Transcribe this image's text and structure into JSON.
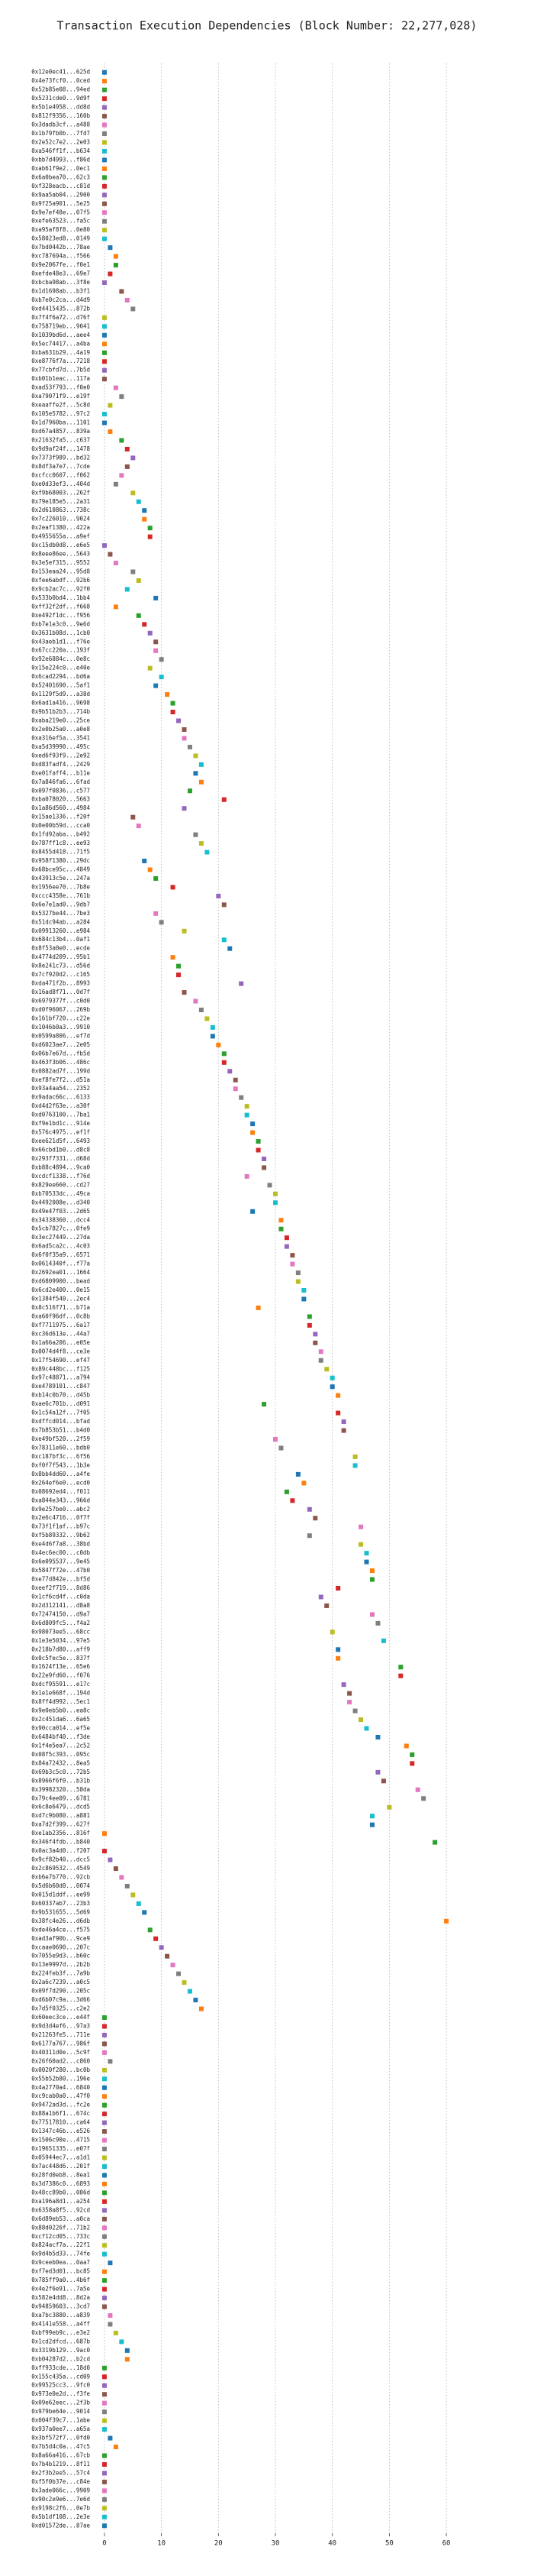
{
  "chart_data": {
    "type": "dot",
    "title": "Transaction Execution Dependencies (Block Number: 22,277,028)",
    "categories": [
      "0x12e0ec41...625d",
      "0x4e73fcf0...0ced",
      "0x52b85e08...94ed",
      "0x5231cde0...9d9f",
      "0x5b1e4958...dd8d",
      "0x812f9356...160b",
      "0x3dadb3cf...a488",
      "0x1b79fb0b...7fd7",
      "0x2e52c7e2...2e03",
      "0xa546ff1f...b634",
      "0xbb7d4993...f86d",
      "0xab61f9e2...0ec1",
      "0x6a0bea70...62c3",
      "0xf328eacb...c81d",
      "0x9aa5ab04...2900",
      "0x9f25a901...5e25",
      "0x9e7ef48e...07f5",
      "0xefe63523...fa5c",
      "0xa95af8f8...0e80",
      "0x58023ed8...0149",
      "0x7bd0442b...78ae",
      "0xc787694a...f566",
      "0x9e2067fe...f0e1",
      "0xefde48e3...69e7",
      "0xbcba98ab...3f8e",
      "0x1d1698ab...b3f1",
      "0xb7e0c2ca...d4d9",
      "0xd4415435...872b",
      "0x7f4f6a72...d76f",
      "0x758719eb...9041",
      "0x1039bd6d...aee4",
      "0x5ec74417...a4ba",
      "0xba631b29...4a19",
      "0xe8776f7a...7218",
      "0x77cbfd7d...7b5d",
      "0xb01b1eac...117a",
      "0xad53f793...f0e0",
      "0xa79071f9...e19f",
      "0xeaaffe2f...5c8d",
      "0x105e5782...97c2",
      "0x1d7960ba...1101",
      "0xd67a4857...839a",
      "0x21632fa5...c637",
      "0x9d9af24f...1478",
      "0x7373f989...bd32",
      "0x8df3a7e7...7cde",
      "0xcfcc0607...f062",
      "0xe0d33ef3...404d",
      "0xf9b68003...262f",
      "0x79e185e5...2a31",
      "0x2d610863...738c",
      "0x7c226010...9024",
      "0x2eaf1380...422a",
      "0x4955655a...a9ef",
      "0xc15db0d8...e6e5",
      "0x8eee86ee...5643",
      "0x3e5ef315...9552",
      "0x153eaa24...95d8",
      "0xfee6abdf...92b6",
      "0x9cb2ac7c...92f0",
      "0x533b0bd4...1bb4",
      "0xff32f2df...f668",
      "0xe492f1dc...f956",
      "0xb7e1e3c0...9e6d",
      "0x3631b08d...1cb0",
      "0x43aeb1d1...f76e",
      "0x67cc220a...193f",
      "0x92e6884c...0e8c",
      "0x15e224c0...e40e",
      "0x6cad2294...bd6a",
      "0x52401690...5af1",
      "0x1129f5d9...a38d",
      "0x6ad1a416...9698",
      "0x9b51b2b3...714b",
      "0xaba219e0...25ce",
      "0x2e0b25a0...a0e8",
      "0xa316ef5a...3541",
      "0xa5d39990...495c",
      "0xed6f93f9...2e92",
      "0xd83fadf4...2429",
      "0xe01faff4...b11e",
      "0x7a846fa6...6fad",
      "0x097f0836...c577",
      "0xba078020...5663",
      "0x1a86d560...4984",
      "0x15ae1336...f20f",
      "0x0e00b59d...cca0",
      "0x1fd92aba...b492",
      "0x787ff1c8...ee93",
      "0x8455d418...71f5",
      "0x958f1380...29dc",
      "0x68bce95c...4849",
      "0x43913c5e...247a",
      "0x1956ee70...7b8e",
      "0xccc4358e...761b",
      "0x6e7e1ad0...9db7",
      "0x5327be44...7be3",
      "0x51dc94ab...a284",
      "0x09913260...e984",
      "0x684c13b4...0af1",
      "0x8f53a0e0...ecde",
      "0x4774d209...95b1",
      "0x8e241c73...d56d",
      "0x7cf920d2...c165",
      "0xda471f2b...8993",
      "0x16ad8f71...0d7f",
      "0x6979377f...c0d0",
      "0xd0f96067...269b",
      "0x161bf720...c22e",
      "0x1046b0a3...9910",
      "0x0599a806...ef7d",
      "0xd6023ae7...2e05",
      "0x06b7e67d...fb5d",
      "0x463f3b06...486c",
      "0x0882ad7f...199d",
      "0xef8fe7f2...d51a",
      "0x93a4aa54...2352",
      "0x9adac66c...6133",
      "0xd4d2f63e...a30f",
      "0xd0763100...7ba1",
      "0xf9e1bd1c...914e",
      "0x576c4975...ef1f",
      "0xee621d5f...6493",
      "0x66cbd1b0...d8c8",
      "0x293f7331...d68d",
      "0xb88c4894...9ca0",
      "0xcdcf1338...f76d",
      "0x829ee660...cd27",
      "0xb70533dc...49ca",
      "0x4492008e...d340",
      "0x49e47f03...2d65",
      "0x34338360...dcc4",
      "0x5cb7827c...0fe9",
      "0x3ec27449...27da",
      "0x6ad5ca2c...4c03",
      "0x6f0f35a9...6571",
      "0x0614340f...f77a",
      "0x2692ea01...1664",
      "0xd6809900...bead",
      "0x6cd2e400...0e15",
      "0x1384f540...2ec4",
      "0x8c516f71...b71a",
      "0xa60f96df...0c8b",
      "0xf7711975...6a17",
      "0xc36d613e...44a7",
      "0x1a66a206...e05e",
      "0x0074d4f8...ce3e",
      "0x17f54690...ef47",
      "0x89c448bc...f125",
      "0x97c48871...a794",
      "0xe4789101...c847",
      "0xb14c0b70...d45b",
      "0xae6c701b...d091",
      "0x1c54a12f...7f05",
      "0xdffcd014...bfad",
      "0x7b853b51...b4d0",
      "0xe49bf520...2f59",
      "0x78311e60...bdb0",
      "0xc187bf3c...6f56",
      "0xf0f7f543...1b3e",
      "0x8bb4dd60...a4fe",
      "0x264ef6e0...ecd0",
      "0x08692ed4...f011",
      "0xa844e343...966d",
      "0x9e257be0...abc2",
      "0x2e6c4716...0f7f",
      "0x73f1f1af...b97c",
      "0xf5b89332...9b62",
      "0xe4d6f7a8...38bd",
      "0x4ec6ec00...c0db",
      "0x6e095537...9e45",
      "0x5847f72e...47b0",
      "0xe77d842e...bf5d",
      "0xeef2f719...8d86",
      "0x1cf6cd4f...c0da",
      "0x2d312141...d8a8",
      "0x72474150...d9a7",
      "0x6d809fc5...f4a2",
      "0x98073ee5...68cc",
      "0x1e3e5034...97e5",
      "0x218b7d80...aff9",
      "0x0c5fec5e...837f",
      "0x1624f13e...65e6",
      "0x22e9fd60...f076",
      "0xdcf95591...e17c",
      "0x1e1e668f...194d",
      "0x8ff4d992...5ec1",
      "0x9e0eb5b0...ea8c",
      "0x2c451da6...6a65",
      "0x90cca014...ef5e",
      "0x6484bf40...f3de",
      "0x1f4e5ea7...2c52",
      "0x08f5c393...095c",
      "0x84a72432...8ea5",
      "0x69b3c5c0...72b5",
      "0x8966f6f0...b31b",
      "0x39982320...58da",
      "0x79c4ee09...6781",
      "0x6c8e6479...dcd5",
      "0xd7c9b080...a881",
      "0xa7d2f399...627f",
      "0xe1ab2356...816f",
      "0x346f4fdb...b840",
      "0x0ac3a4d0...f207",
      "0x9cf82b40...dcc5",
      "0x2c869532...4549",
      "0xb6e7b770...92cb",
      "0x5d6b60d0...0074",
      "0x015d1ddf...ee99",
      "0x60337ab7...23b3",
      "0x9b531655...5d69",
      "0x38fc4e26...d6db",
      "0xde46a4ce...f575",
      "0xad3af90b...9ce9",
      "0xcaae0690...207c",
      "0x7055e9d3...b60c",
      "0x13e9997d...2b2b",
      "0x224feb3f...7a9b",
      "0x2a6c7239...a0c5",
      "0x09f7d290...205c",
      "0xd6b07c9a...3d66",
      "0x7d5f0325...c2e2",
      "0x60eec3ce...e44f",
      "0x9d3d4ef6...97a3",
      "0x21263fe5...711e",
      "0x6177a767...986f",
      "0x40311d0e...5c9f",
      "0x26f60ad2...c860",
      "0x0020f280...bc0b",
      "0x55b52b80...196e",
      "0x4a2770a4...6840",
      "0xc9cab0a0...47f0",
      "0x9472ad3d...fc2e",
      "0x88a1b6f1...674c",
      "0x77517810...ca64",
      "0x1347c46b...e526",
      "0x1506c90e...4715",
      "0x19651335...e07f",
      "0x05944ec7...a1d1",
      "0x7ac448d6...201f",
      "0x28fd0eb8...8ea1",
      "0x3d7386c0...6893",
      "0x48cc89b0...086d",
      "0xa196a8d1...a254",
      "0x6358a8f5...92cd",
      "0x6d89eb53...a0ca",
      "0x88d0226f...71b2",
      "0xcf12cd05...733c",
      "0x824acf7a...22f1",
      "0x9d4b5d33...74fe",
      "0x9ceeb0ea...0aa7",
      "0xf7ed3d01...bc85",
      "0x785ff9a0...4b6f",
      "0x4e2f6e91...7a5e",
      "0x582e4dd8...8d2a",
      "0x94859603...3cd7",
      "0xa7bc3880...a839",
      "0x4141e558...a4ff",
      "0xbf99eb9c...e3e2",
      "0x1cd2dfcd...687b",
      "0x3319b129...9ac0",
      "0xb04287d2...b2cd",
      "0xff933cde...18d0",
      "0x155c435a...cd09",
      "0x99525cc3...9fc0",
      "0x973e0e2d...f3fe",
      "0x09e62eec...2f3b",
      "0x979be64e...9014",
      "0x004f39c7...1abe",
      "0x937a0ee7...a65a",
      "0x3bf572f7...0fd0",
      "0x7b5d4c0a...47c5",
      "0x8a66a416...67cb",
      "0x7b4b1219...8f11",
      "0x2f3b2ee5...57c4",
      "0xf5f0b37e...c84e",
      "0x3ade066c...9909",
      "0x90c2e9e6...7e6d",
      "0x9198c2f6...0e7b",
      "0x5b1df108...2e3e",
      "0xd01572de...87ae"
    ],
    "values": [
      0,
      0,
      0,
      0,
      0,
      0,
      0,
      0,
      0,
      0,
      0,
      0,
      0,
      0,
      0,
      0,
      0,
      0,
      0,
      0,
      1,
      2,
      2,
      1,
      0,
      3,
      4,
      5,
      0,
      0,
      0,
      0,
      0,
      0,
      0,
      0,
      2,
      3,
      1,
      0,
      0,
      1,
      3,
      4,
      5,
      4,
      3,
      2,
      5,
      6,
      7,
      7,
      8,
      8,
      0,
      1,
      2,
      5,
      6,
      4,
      9,
      2,
      6,
      7,
      8,
      9,
      9,
      10,
      8,
      10,
      9,
      11,
      12,
      12,
      13,
      14,
      14,
      15,
      16,
      17,
      16,
      17,
      15,
      21,
      14,
      5,
      6,
      16,
      17,
      18,
      7,
      8,
      9,
      12,
      20,
      21,
      9,
      10,
      14,
      21,
      22,
      12,
      13,
      13,
      24,
      14,
      16,
      17,
      18,
      19,
      19,
      20,
      21,
      21,
      22,
      23,
      23,
      24,
      25,
      25,
      26,
      26,
      27,
      27,
      28,
      28,
      25,
      29,
      30,
      30,
      26,
      31,
      31,
      32,
      32,
      33,
      33,
      34,
      34,
      35,
      35,
      27,
      36,
      36,
      37,
      37,
      38,
      38,
      39,
      40,
      40,
      41,
      28,
      41,
      42,
      42,
      30,
      31,
      44,
      44,
      34,
      35,
      32,
      33,
      36,
      37,
      45,
      36,
      45,
      46,
      46,
      47,
      47,
      41,
      38,
      39,
      47,
      48,
      40,
      49,
      41,
      41,
      52,
      52,
      42,
      43,
      43,
      44,
      45,
      46,
      48,
      53,
      54,
      54,
      48,
      49,
      55,
      56,
      50,
      47,
      47,
      0,
      58,
      0,
      1,
      2,
      3,
      4,
      5,
      6,
      7,
      60,
      8,
      9,
      10,
      11,
      12,
      13,
      14,
      15,
      16,
      17,
      0,
      0,
      0,
      0,
      0,
      1,
      0,
      0,
      0,
      0,
      0,
      0,
      0,
      0,
      0,
      0,
      0,
      0,
      0,
      0,
      0,
      0,
      0,
      0,
      0,
      0,
      0,
      0,
      1,
      0,
      0,
      0,
      0,
      0,
      1,
      1,
      2,
      3,
      4,
      4,
      0,
      0,
      0,
      0,
      0,
      0,
      0,
      0,
      1,
      2,
      0,
      0,
      0,
      0,
      0,
      0,
      0,
      0,
      0
    ],
    "palette": [
      "#1f77b4",
      "#ff7f0e",
      "#2ca02c",
      "#d62728",
      "#9467bd",
      "#8c564b",
      "#e377c2",
      "#7f7f7f",
      "#bcbd22",
      "#17becf"
    ],
    "xlim": [
      -2,
      62
    ],
    "xticks": [
      0,
      10,
      20,
      30,
      40,
      50,
      60
    ],
    "grid": true
  }
}
